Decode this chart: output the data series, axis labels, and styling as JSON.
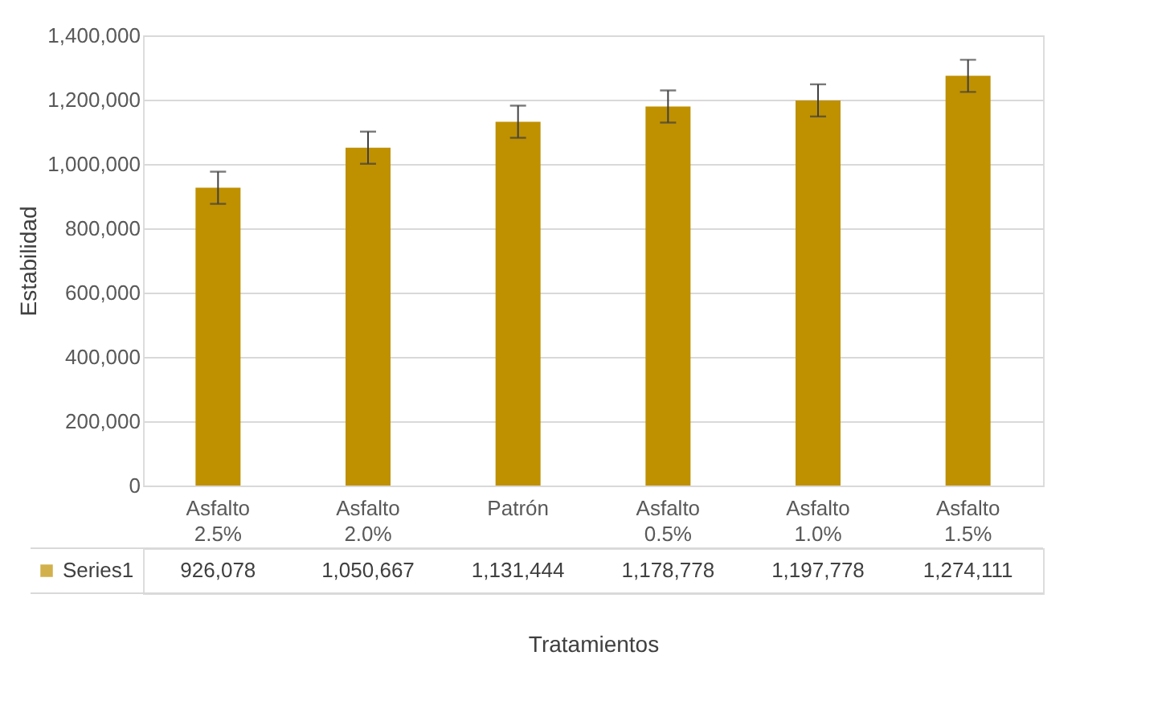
{
  "chart_data": {
    "type": "bar",
    "xlabel": "Tratamientos",
    "ylabel": "Estabilidad",
    "categories": [
      "Asfalto 2.5%",
      "Asfalto 2.0%",
      "Patrón",
      "Asfalto 0.5%",
      "Asfalto 1.0%",
      "Asfalto 1.5%"
    ],
    "series": [
      {
        "name": "Series1",
        "color": "#bf9000",
        "values": [
          926078,
          1050667,
          1131444,
          1178778,
          1197778,
          1274111
        ],
        "errors": [
          50000,
          50000,
          50000,
          50000,
          50000,
          50000
        ],
        "value_labels": [
          "926,078",
          "1,050,667",
          "1,131,444",
          "1,178,778",
          "1,197,778",
          "1,274,111"
        ]
      }
    ],
    "ylim": [
      0,
      1400000
    ],
    "yticks": [
      0,
      {
        "value": 200000,
        "label": "200,000"
      },
      {
        "value": 400000,
        "label": "400,000"
      },
      {
        "value": 600000,
        "label": "600,000"
      },
      {
        "value": 800000,
        "label": "800,000"
      },
      {
        "value": 1000000,
        "label": "1,000,000"
      },
      {
        "value": 1200000,
        "label": "1,200,000"
      },
      {
        "value": 1400000,
        "label": "1,400,000"
      }
    ],
    "grid": "y",
    "legend": "bottom"
  }
}
